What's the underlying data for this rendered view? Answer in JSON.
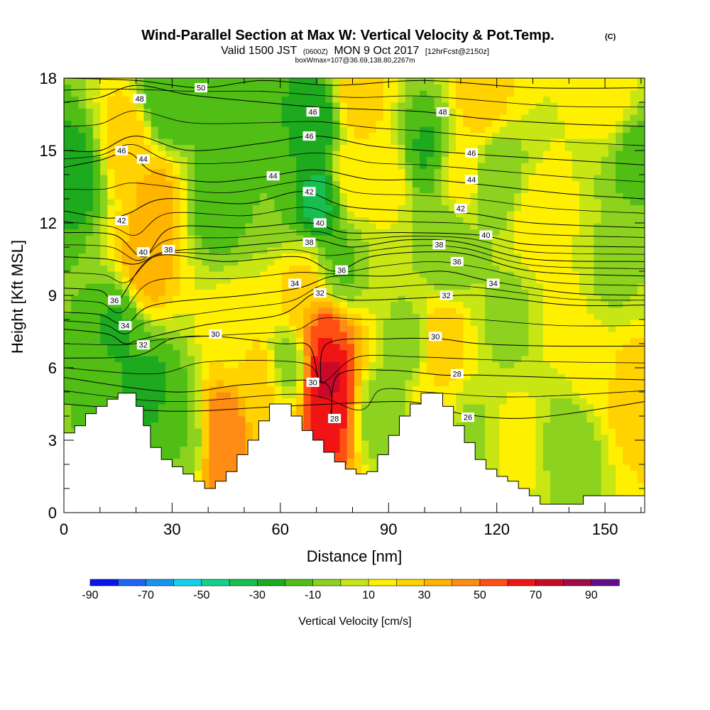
{
  "title": {
    "main": "Wind-Parallel Section at Max W: Vertical Velocity & Pot.Temp.",
    "mark": "(C)",
    "line2_a": "Valid 1500 JST",
    "line2_b": "(0600Z)",
    "line2_c": "MON 9 Oct 2017",
    "line2_d": "[12hrFcst@2150z]",
    "line3": "boxWmax=107@36.69,138.80,2267m"
  },
  "chart_data": {
    "type": "heatmap",
    "xlabel": "Distance [nm]",
    "ylabel": "Height [Kft MSL]",
    "xlim": [
      0,
      161
    ],
    "ylim": [
      0,
      18
    ],
    "x_ticks": [
      0,
      30,
      60,
      90,
      120,
      150
    ],
    "x_tick_labels": [
      "0",
      "30",
      "60",
      "90",
      "120",
      "150"
    ],
    "y_ticks": [
      0,
      3,
      6,
      9,
      12,
      15,
      18
    ],
    "y_tick_labels": [
      "0",
      "3",
      "6",
      "9",
      "12",
      "15",
      "18"
    ],
    "colorbar": {
      "label": "Vertical Velocity [cm/s]",
      "tick_labels": [
        "-90",
        "-70",
        "-50",
        "-30",
        "-10",
        "10",
        "30",
        "50",
        "70",
        "90"
      ],
      "levels": [
        -90,
        -80,
        -70,
        -60,
        -50,
        -40,
        -30,
        -20,
        -10,
        0,
        10,
        20,
        30,
        40,
        50,
        60,
        70,
        80,
        90
      ],
      "colors": [
        "#0a14f0",
        "#1e64f5",
        "#1496f0",
        "#10d2f0",
        "#12d28c",
        "#18be50",
        "#1eaa1e",
        "#50be14",
        "#8cd21e",
        "#c8e614",
        "#fff000",
        "#ffd200",
        "#ffb400",
        "#ff8c14",
        "#ff5014",
        "#f01414",
        "#c80a28",
        "#a00a46",
        "#640a8c"
      ]
    },
    "vertical_velocity_cells": [
      {
        "x": 3,
        "y": 14,
        "w": -28
      },
      {
        "x": 16,
        "y": 8,
        "w": -26
      },
      {
        "x": 22,
        "y": 10,
        "w": 34
      },
      {
        "x": 26,
        "y": 13,
        "w": 30
      },
      {
        "x": 18,
        "y": 15.5,
        "w": 26
      },
      {
        "x": 24,
        "y": 5,
        "w": -28
      },
      {
        "x": 30,
        "y": 4,
        "w": -22
      },
      {
        "x": 34,
        "y": 3,
        "w": -14
      },
      {
        "x": 44,
        "y": 3.5,
        "w": 48
      },
      {
        "x": 44,
        "y": 2,
        "w": 42
      },
      {
        "x": 42,
        "y": 13,
        "w": -24
      },
      {
        "x": 44,
        "y": 16,
        "w": -14
      },
      {
        "x": 28,
        "y": 17,
        "w": -24
      },
      {
        "x": 30,
        "y": 17.5,
        "w": -20
      },
      {
        "x": 48,
        "y": 7,
        "w": 14
      },
      {
        "x": 56,
        "y": 13.5,
        "w": -14
      },
      {
        "x": 54,
        "y": 5.5,
        "w": 24
      },
      {
        "x": 57,
        "y": 4.5,
        "w": 18
      },
      {
        "x": 62,
        "y": 6,
        "w": -16
      },
      {
        "x": 68,
        "y": 9,
        "w": 22
      },
      {
        "x": 72,
        "y": 7.5,
        "w": 58
      },
      {
        "x": 72,
        "y": 5.5,
        "w": 74
      },
      {
        "x": 73,
        "y": 4,
        "w": 60
      },
      {
        "x": 71,
        "y": 13,
        "w": -38
      },
      {
        "x": 70,
        "y": 16,
        "w": -32
      },
      {
        "x": 76,
        "y": 10,
        "w": -18
      },
      {
        "x": 80,
        "y": 14,
        "w": 16
      },
      {
        "x": 82,
        "y": 17,
        "w": 22
      },
      {
        "x": 88,
        "y": 4,
        "w": -12
      },
      {
        "x": 90,
        "y": 14,
        "w": 10
      },
      {
        "x": 96,
        "y": 7,
        "w": -10
      },
      {
        "x": 100,
        "y": 15,
        "w": -26
      },
      {
        "x": 104,
        "y": 7,
        "w": 26
      },
      {
        "x": 104,
        "y": 5,
        "w": 16
      },
      {
        "x": 106,
        "y": 11,
        "w": -14
      },
      {
        "x": 110,
        "y": 14,
        "w": 12
      },
      {
        "x": 112,
        "y": 3.5,
        "w": -6
      },
      {
        "x": 116,
        "y": 17,
        "w": 22
      },
      {
        "x": 120,
        "y": 14,
        "w": -14
      },
      {
        "x": 124,
        "y": 8,
        "w": -8
      },
      {
        "x": 126,
        "y": 3,
        "w": 10
      },
      {
        "x": 132,
        "y": 12,
        "w": 14
      },
      {
        "x": 138,
        "y": 8,
        "w": 10
      },
      {
        "x": 140,
        "y": 3,
        "w": -12
      },
      {
        "x": 146,
        "y": 6,
        "w": 10
      },
      {
        "x": 152,
        "y": 10,
        "w": -6
      },
      {
        "x": 158,
        "y": 15,
        "w": -18
      },
      {
        "x": 158,
        "y": 5,
        "w": 24
      },
      {
        "x": 152,
        "y": 17,
        "w": 12
      }
    ],
    "terrain": {
      "x": [
        0,
        3,
        6,
        9,
        12,
        15,
        18,
        20,
        22,
        24,
        27,
        30,
        33,
        36,
        39,
        42,
        45,
        48,
        51,
        54,
        57,
        60,
        63,
        66,
        69,
        72,
        75,
        78,
        81,
        84,
        87,
        90,
        93,
        96,
        99,
        102,
        105,
        108,
        111,
        114,
        117,
        120,
        123,
        126,
        129,
        132,
        135,
        138,
        141,
        144,
        147,
        150,
        153,
        156,
        159,
        161
      ],
      "height": [
        3.3,
        3.6,
        4.1,
        4.4,
        4.7,
        4.95,
        4.95,
        4.4,
        3.6,
        2.7,
        2.2,
        1.9,
        1.6,
        1.3,
        1.0,
        1.3,
        1.7,
        2.4,
        3.0,
        3.8,
        4.5,
        4.5,
        4.0,
        3.4,
        3.0,
        2.5,
        2.1,
        1.8,
        1.6,
        1.7,
        2.4,
        3.2,
        4.0,
        4.5,
        4.95,
        4.95,
        4.4,
        3.6,
        2.9,
        2.2,
        1.8,
        1.5,
        1.3,
        1.0,
        0.7,
        0.35,
        0.35,
        0.35,
        0.35,
        0.7,
        0.7,
        0.7,
        0.7,
        0.7,
        0.7,
        0.7
      ]
    },
    "theta_contours": [
      {
        "label": "26",
        "points": [
          [
            0,
            4.5
          ],
          [
            30,
            4.2
          ],
          [
            60,
            4.4
          ],
          [
            90,
            4.6
          ],
          [
            100,
            4.5
          ],
          [
            110,
            4.1
          ],
          [
            125,
            3.9
          ],
          [
            140,
            4.1
          ],
          [
            161,
            4.6
          ]
        ],
        "label_at": [
          112,
          3.95
        ]
      },
      {
        "label": "28",
        "points": [
          [
            0,
            5.6
          ],
          [
            30,
            5.0
          ],
          [
            50,
            5.3
          ],
          [
            72,
            5.4
          ],
          [
            74,
            3.9
          ],
          [
            76,
            5.7
          ],
          [
            90,
            5.9
          ],
          [
            105,
            5.7
          ],
          [
            115,
            5.7
          ],
          [
            135,
            5.6
          ],
          [
            161,
            5.5
          ]
        ],
        "label_at": [
          109,
          5.75
        ]
      },
      {
        "label": "30",
        "points": [
          [
            0,
            6.4
          ],
          [
            20,
            6.5
          ],
          [
            30,
            7.2
          ],
          [
            42,
            7.3
          ],
          [
            60,
            7.0
          ],
          [
            68,
            6.9
          ],
          [
            71,
            5.4
          ],
          [
            73,
            7.0
          ],
          [
            90,
            7.2
          ],
          [
            104,
            7.2
          ],
          [
            115,
            7.0
          ],
          [
            135,
            6.9
          ],
          [
            161,
            6.9
          ]
        ],
        "label_at": [
          103,
          7.3
        ]
      },
      {
        "label": "32",
        "points": [
          [
            0,
            7.6
          ],
          [
            12,
            7.4
          ],
          [
            17,
            7.0
          ],
          [
            22,
            7.2
          ],
          [
            40,
            7.8
          ],
          [
            60,
            8.2
          ],
          [
            70,
            9.1
          ],
          [
            80,
            8.8
          ],
          [
            100,
            8.9
          ],
          [
            115,
            9.0
          ],
          [
            140,
            8.6
          ],
          [
            161,
            8.6
          ]
        ],
        "label_at": [
          22,
          6.95
        ]
      },
      {
        "label": "34",
        "points": [
          [
            0,
            8.3
          ],
          [
            10,
            8.2
          ],
          [
            17,
            7.8
          ],
          [
            25,
            8.6
          ],
          [
            50,
            9.0
          ],
          [
            65,
            9.3
          ],
          [
            75,
            9.8
          ],
          [
            90,
            9.8
          ],
          [
            105,
            10.0
          ],
          [
            118,
            9.6
          ],
          [
            140,
            9.1
          ],
          [
            161,
            9.0
          ]
        ],
        "label_at": [
          17,
          7.75
        ]
      },
      {
        "label": "36",
        "points": [
          [
            0,
            9.3
          ],
          [
            10,
            9.2
          ],
          [
            15,
            8.8
          ],
          [
            25,
            10.6
          ],
          [
            45,
            10.4
          ],
          [
            65,
            10.6
          ],
          [
            75,
            10.0
          ],
          [
            85,
            10.6
          ],
          [
            100,
            10.8
          ],
          [
            112,
            10.7
          ],
          [
            130,
            10.0
          ],
          [
            161,
            9.8
          ]
        ],
        "label_at": [
          77,
          10.05
        ]
      },
      {
        "label": "38",
        "points": [
          [
            0,
            10.6
          ],
          [
            12,
            10.5
          ],
          [
            20,
            10.3
          ],
          [
            28,
            10.8
          ],
          [
            45,
            11.0
          ],
          [
            60,
            11.2
          ],
          [
            70,
            11.3
          ],
          [
            80,
            11.0
          ],
          [
            95,
            11.3
          ],
          [
            110,
            11.2
          ],
          [
            130,
            10.5
          ],
          [
            161,
            10.4
          ]
        ],
        "label_at": [
          29,
          10.9
        ]
      },
      {
        "label": "40",
        "points": [
          [
            0,
            11.6
          ],
          [
            14,
            11.5
          ],
          [
            22,
            10.6
          ],
          [
            30,
            11.8
          ],
          [
            50,
            11.8
          ],
          [
            68,
            12.0
          ],
          [
            78,
            11.6
          ],
          [
            95,
            11.6
          ],
          [
            115,
            11.5
          ],
          [
            130,
            11.1
          ],
          [
            161,
            11.0
          ]
        ],
        "label_at": [
          22,
          10.8
        ]
      },
      {
        "label": "42",
        "points": [
          [
            0,
            12.5
          ],
          [
            12,
            12.2
          ],
          [
            18,
            12.4
          ],
          [
            28,
            13.0
          ],
          [
            50,
            12.8
          ],
          [
            66,
            13.3
          ],
          [
            78,
            12.7
          ],
          [
            95,
            12.5
          ],
          [
            112,
            12.4
          ],
          [
            130,
            12.0
          ],
          [
            161,
            11.8
          ]
        ],
        "label_at": [
          16,
          12.1
        ]
      },
      {
        "label": "44",
        "points": [
          [
            0,
            14.3
          ],
          [
            10,
            14.6
          ],
          [
            18,
            14.9
          ],
          [
            25,
            14.1
          ],
          [
            40,
            13.7
          ],
          [
            55,
            13.9
          ],
          [
            70,
            14.2
          ],
          [
            85,
            13.8
          ],
          [
            100,
            13.8
          ],
          [
            115,
            13.6
          ],
          [
            140,
            13.2
          ],
          [
            161,
            13.0
          ]
        ],
        "label_at": [
          22,
          14.65
        ]
      },
      {
        "label": "46",
        "points": [
          [
            0,
            15.0
          ],
          [
            10,
            15.0
          ],
          [
            20,
            15.6
          ],
          [
            35,
            15.0
          ],
          [
            55,
            15.3
          ],
          [
            70,
            15.6
          ],
          [
            85,
            15.2
          ],
          [
            100,
            15.0
          ],
          [
            118,
            14.8
          ],
          [
            140,
            14.6
          ],
          [
            161,
            14.4
          ]
        ],
        "label_at": [
          16,
          15.0
        ]
      },
      {
        "label": "48",
        "points": [
          [
            0,
            17.0
          ],
          [
            10,
            17.2
          ],
          [
            20,
            17.7
          ],
          [
            35,
            17.3
          ],
          [
            55,
            17.0
          ],
          [
            70,
            16.8
          ],
          [
            85,
            16.7
          ],
          [
            100,
            16.6
          ],
          [
            118,
            16.3
          ],
          [
            140,
            16.1
          ],
          [
            161,
            16.0
          ]
        ],
        "label_at": [
          21,
          17.15
        ]
      },
      {
        "label": "50",
        "points": [
          [
            0,
            18.0
          ],
          [
            20,
            17.9
          ],
          [
            38,
            17.6
          ],
          [
            55,
            17.9
          ],
          [
            75,
            17.7
          ],
          [
            100,
            17.9
          ],
          [
            130,
            17.6
          ],
          [
            161,
            17.6
          ]
        ],
        "label_at": [
          38,
          17.6
        ]
      }
    ],
    "theta_extra_labels": [
      {
        "label": "46",
        "at": [
          69,
          16.6
        ]
      },
      {
        "label": "46",
        "at": [
          68,
          15.6
        ]
      },
      {
        "label": "44",
        "at": [
          58,
          13.95
        ]
      },
      {
        "label": "42",
        "at": [
          68,
          13.3
        ]
      },
      {
        "label": "40",
        "at": [
          71,
          12.0
        ]
      },
      {
        "label": "38",
        "at": [
          68,
          11.2
        ]
      },
      {
        "label": "34",
        "at": [
          64,
          9.5
        ]
      },
      {
        "label": "32",
        "at": [
          71,
          9.1
        ]
      },
      {
        "label": "30",
        "at": [
          69,
          5.4
        ]
      },
      {
        "label": "28",
        "at": [
          75,
          3.9
        ]
      },
      {
        "label": "30",
        "at": [
          42,
          7.4
        ]
      },
      {
        "label": "36",
        "at": [
          14,
          8.8
        ]
      },
      {
        "label": "48",
        "at": [
          105,
          16.6
        ]
      },
      {
        "label": "46",
        "at": [
          113,
          14.9
        ]
      },
      {
        "label": "44",
        "at": [
          113,
          13.8
        ]
      },
      {
        "label": "42",
        "at": [
          110,
          12.6
        ]
      },
      {
        "label": "40",
        "at": [
          117,
          11.5
        ]
      },
      {
        "label": "38",
        "at": [
          104,
          11.1
        ]
      },
      {
        "label": "36",
        "at": [
          109,
          10.4
        ]
      },
      {
        "label": "34",
        "at": [
          119,
          9.5
        ]
      },
      {
        "label": "32",
        "at": [
          106,
          9.0
        ]
      }
    ]
  }
}
